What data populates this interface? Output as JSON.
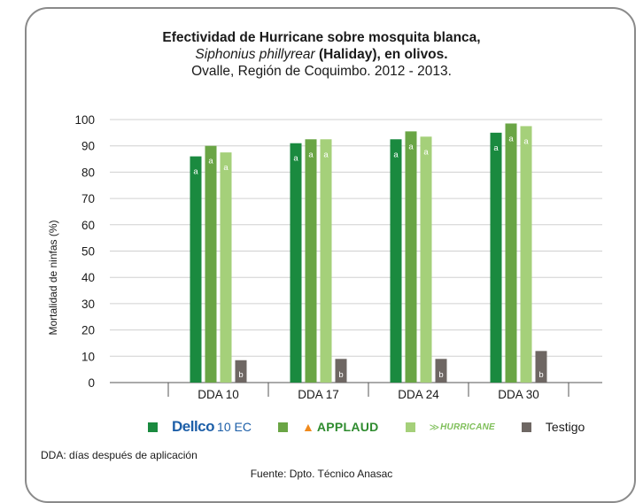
{
  "chart_data": {
    "type": "bar",
    "title_line1": "Efectividad de Hurricane sobre mosquita blanca,",
    "title_line2_italic": "Siphonius phillyrear",
    "title_line2_bold": "(Haliday), en olivos.",
    "title_line3": "Ovalle, Región de Coquimbo. 2012 - 2013.",
    "ylabel": "Mortalidad de ninfas (%)",
    "ylim": [
      0,
      100
    ],
    "yticks": [
      "0",
      "10",
      "20",
      "30",
      "40",
      "50",
      "60",
      "70",
      "80",
      "90",
      "100"
    ],
    "grid": true,
    "categories": [
      "DDA 10",
      "DDA 17",
      "DDA 24",
      "DDA 30"
    ],
    "series": [
      {
        "name": "Dellco 10 EC",
        "color": "#1a8a3f",
        "values": [
          86,
          91,
          92.5,
          95
        ],
        "letters": [
          "a",
          "a",
          "a",
          "a"
        ]
      },
      {
        "name": "APPLAUD",
        "color": "#6aa545",
        "values": [
          90,
          92.5,
          95.5,
          98.5
        ],
        "letters": [
          "a",
          "a",
          "a",
          "a"
        ]
      },
      {
        "name": "HURRICANE",
        "color": "#a5d07a",
        "values": [
          87.5,
          92.5,
          93.5,
          97.5
        ],
        "letters": [
          "a",
          "a",
          "a",
          "a"
        ]
      },
      {
        "name": "Testigo",
        "color": "#6e6763",
        "values": [
          8.5,
          9,
          9,
          12
        ],
        "letters": [
          "b",
          "b",
          "b",
          "b"
        ]
      }
    ],
    "legend_position": "bottom"
  },
  "legend": {
    "dellco_brand": "Dellco",
    "dellco_suffix": "10 EC",
    "applaud_brand": "APPLAUD",
    "hurricane_brand": "HURRICANE",
    "testigo": "Testigo"
  },
  "footnote": "DDA: días después de aplicación",
  "source": "Fuente: Dpto. Técnico Anasac"
}
